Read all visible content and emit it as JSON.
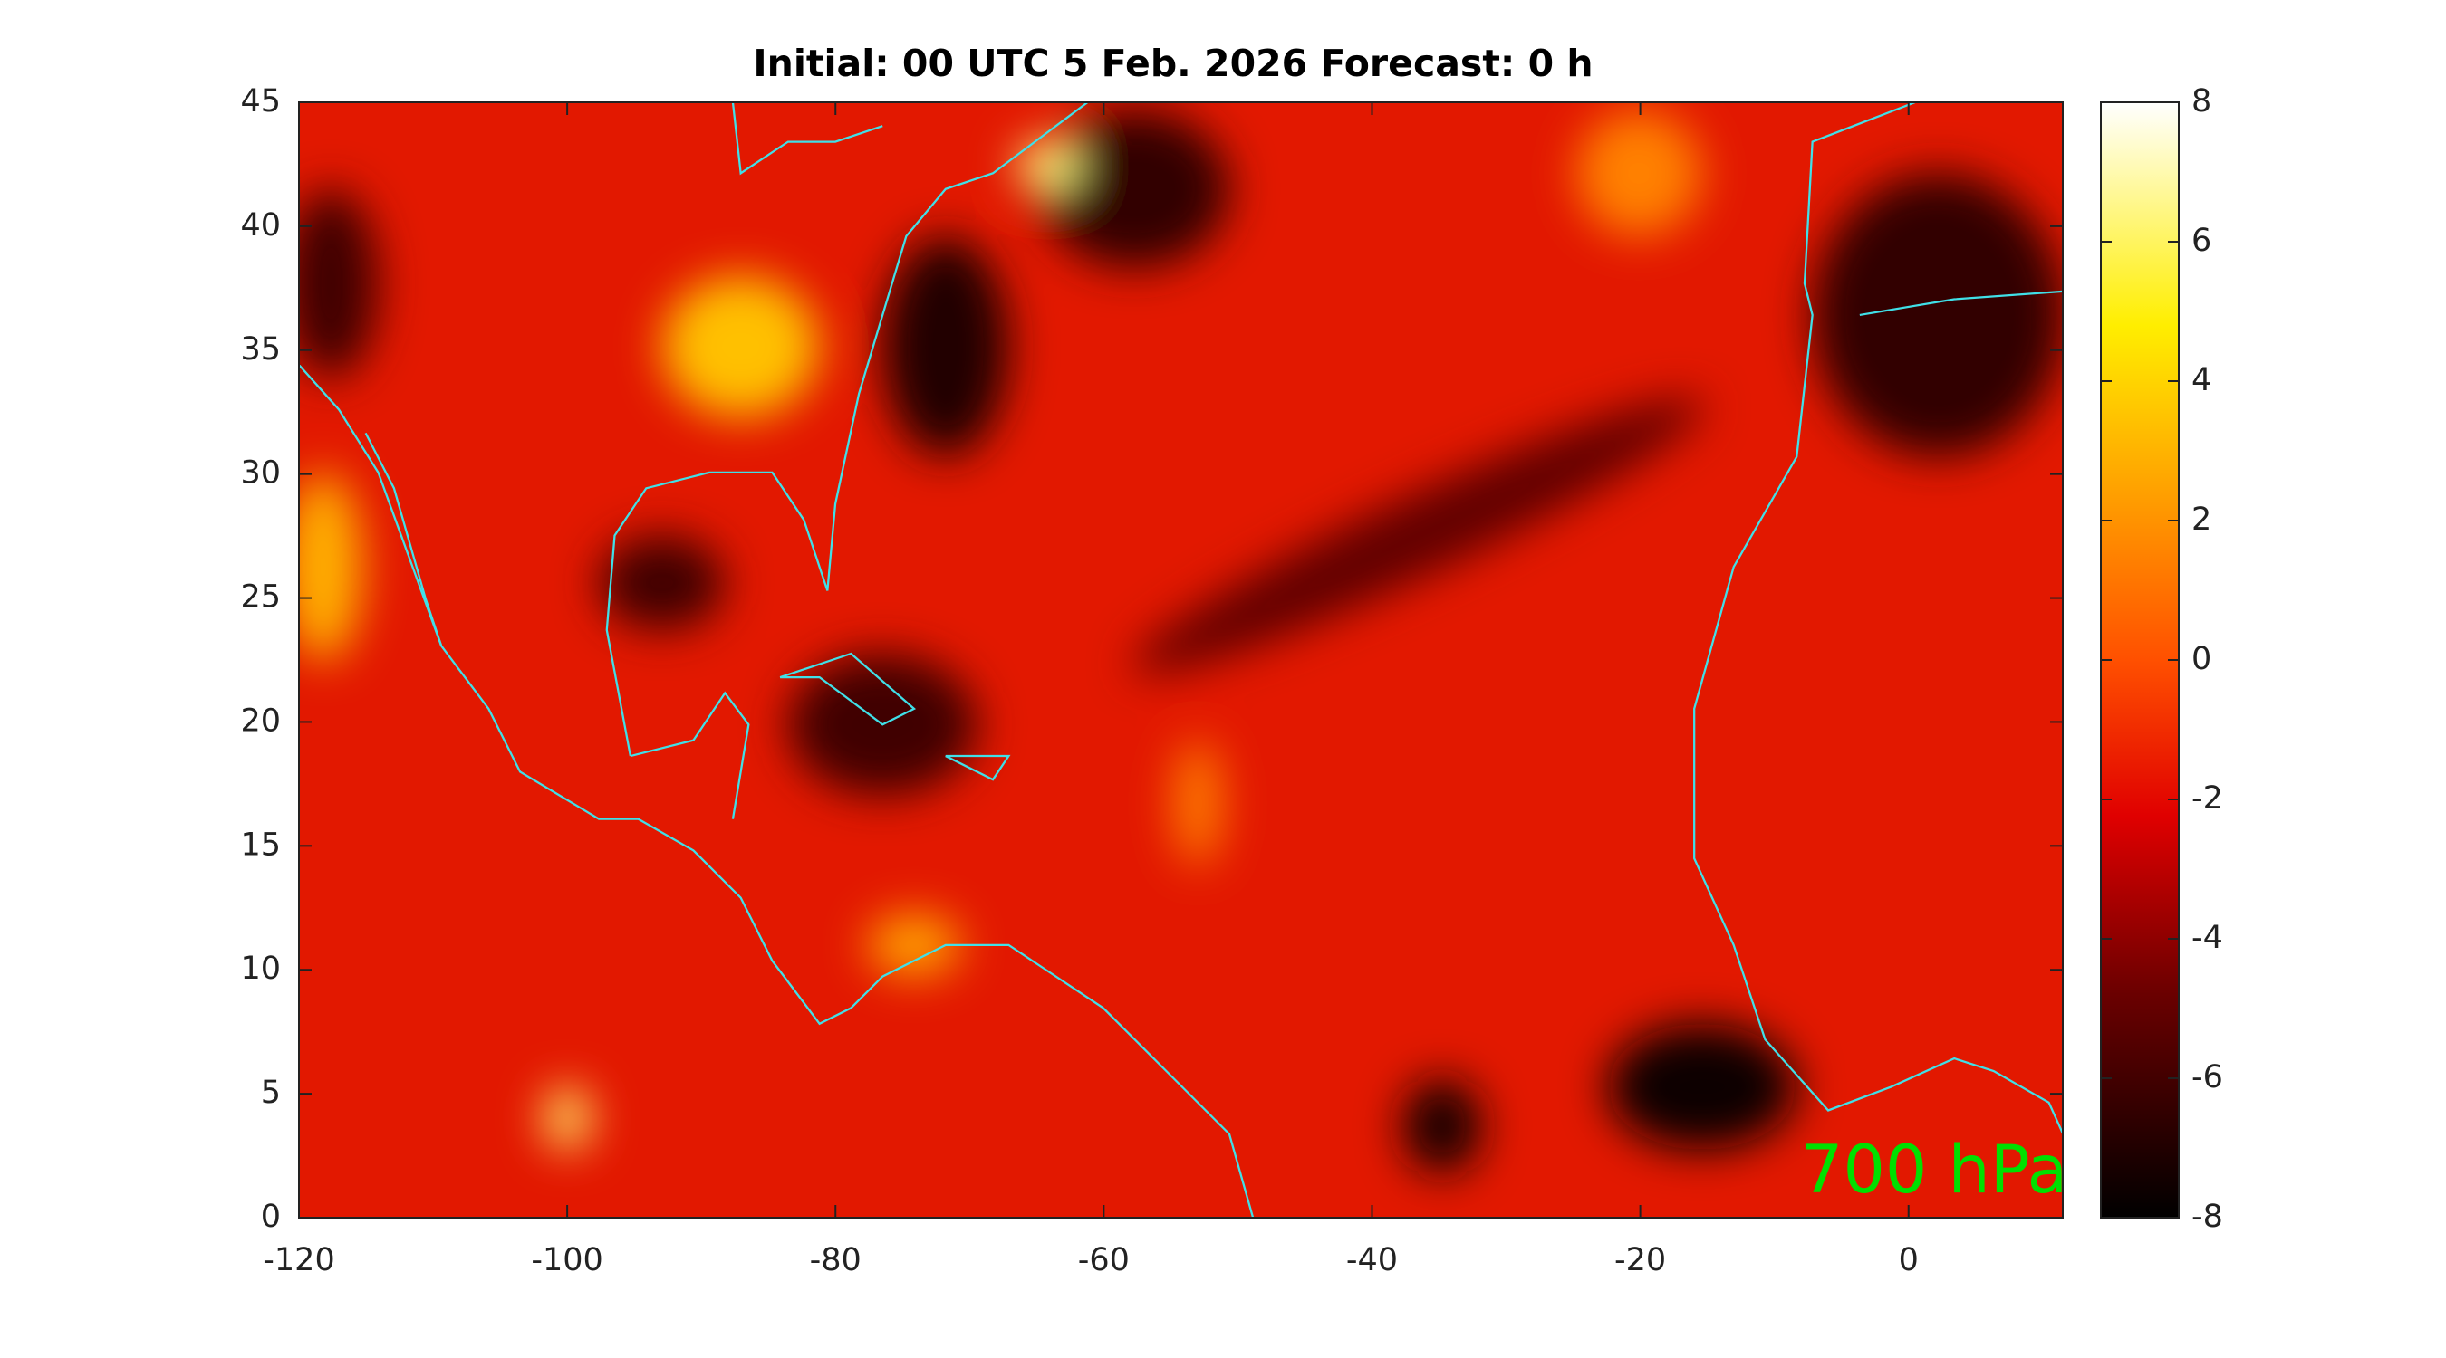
{
  "map": {
    "title": "Initial: 00 UTC 5 Feb. 2026 Forecast: 0 h",
    "xlim": [
      -120,
      11.5
    ],
    "ylim": [
      0,
      45
    ],
    "xticks": [
      -120,
      -100,
      -80,
      -60,
      -40,
      -20,
      0
    ],
    "yticks": [
      0,
      5,
      10,
      15,
      20,
      25,
      30,
      35,
      40,
      45
    ],
    "colorbar": {
      "lim": [
        -8,
        8
      ],
      "ticks": [
        -8,
        -6,
        -4,
        -2,
        0,
        2,
        4,
        6,
        8
      ]
    },
    "level_label": "700 hPa"
  }
}
